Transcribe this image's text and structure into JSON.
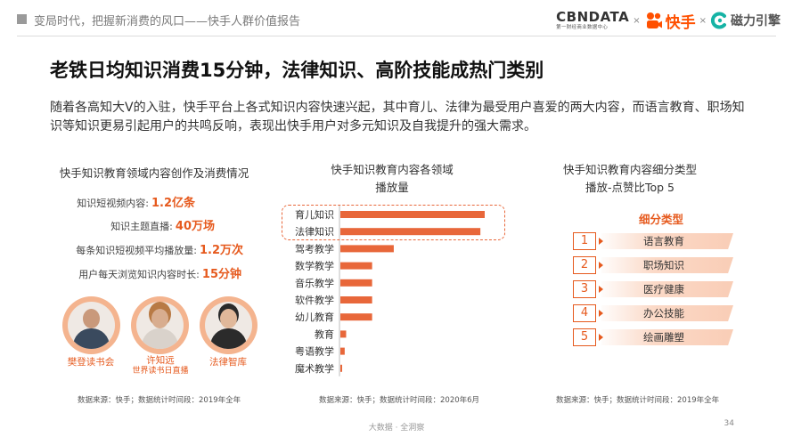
{
  "header": {
    "title": "变局时代，把握新消费的风口——快手人群价值报告",
    "logos": {
      "cbn": "CBNDATA",
      "cbn_sub": "第一财经商业数据中心",
      "kuaishou": "快手",
      "cili": "磁力引擎",
      "sep": "×"
    }
  },
  "headline": "老铁日均知识消费15分钟，法律知识、高阶技能成热门类别",
  "intro": "随着各高知大V的入驻，快手平台上各式知识内容快速兴起，其中育儿、法律为最受用户喜爱的两大内容，而语言教育、职场知识等知识更易引起用户的共鸣反响，表现出快手用户对多元知识及自我提升的强大需求。",
  "left_panel": {
    "title": "快手知识教育领域内容创作及消费情况",
    "stats": [
      {
        "label": "知识短视频内容:",
        "value": "1.2亿条"
      },
      {
        "label": "知识主题直播:",
        "value": "40万场"
      },
      {
        "label": "每条知识短视频平均播放量:",
        "value": "1.2万次"
      },
      {
        "label": "用户每天浏览知识内容时长:",
        "value": "15分钟"
      }
    ],
    "avatars": [
      {
        "name": "樊登读书会",
        "icon": "person-avatar-icon"
      },
      {
        "name": "许知远",
        "sub": "世界读书日直播",
        "icon": "person-avatar-icon"
      },
      {
        "name": "法律智库",
        "icon": "person-avatar-icon"
      }
    ],
    "source": "数据来源：快手；数据统计时间段：2019年全年"
  },
  "middle_panel": {
    "title_line1": "快手知识教育内容各领域",
    "title_line2": "播放量",
    "source": "数据来源：快手；数据统计时间段：2020年6月"
  },
  "right_panel": {
    "title_line1": "快手知识教育内容细分类型",
    "title_line2": "播放-点赞比Top 5",
    "category_title": "细分类型",
    "items": [
      {
        "rank": "1",
        "label": "语言教育"
      },
      {
        "rank": "2",
        "label": "职场知识"
      },
      {
        "rank": "3",
        "label": "医疗健康"
      },
      {
        "rank": "4",
        "label": "办公技能"
      },
      {
        "rank": "5",
        "label": "绘画雕塑"
      }
    ],
    "source": "数据来源：快手；数据统计时间段：2019年全年"
  },
  "chart_data": {
    "type": "bar",
    "orientation": "horizontal",
    "title": "快手知识教育内容各领域播放量",
    "categories": [
      "育儿知识",
      "法律知识",
      "驾考教学",
      "数学教学",
      "音乐教学",
      "软件教学",
      "幼儿教育",
      "教育",
      "粤语教学",
      "魔术教学"
    ],
    "values": [
      100,
      97,
      37,
      22,
      22,
      22,
      22,
      4,
      3,
      1
    ],
    "highlighted": [
      "育儿知识",
      "法律知识"
    ],
    "bar_color": "#e8673a",
    "axis_values_shown": false,
    "grid": false
  },
  "footer": {
    "text": "大数据 · 全洞察",
    "page": "34"
  },
  "colors": {
    "accent": "#e65a1e",
    "bar": "#e8673a",
    "avatar_ring": "#f4b48f"
  }
}
